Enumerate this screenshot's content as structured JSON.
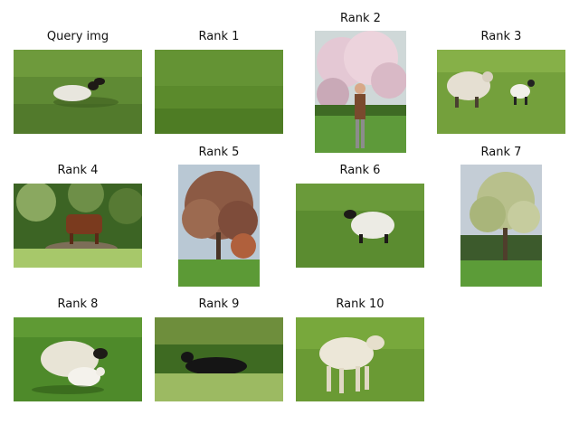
{
  "panels": [
    {
      "id": "query",
      "title": "Query img",
      "scene": "sheep lying on grass"
    },
    {
      "id": "rank1",
      "title": "Rank 1",
      "scene": "grass field"
    },
    {
      "id": "rank2",
      "title": "Rank 2",
      "scene": "person by blossoming tree"
    },
    {
      "id": "rank3",
      "title": "Rank 3",
      "scene": "sheep and lamb on grass"
    },
    {
      "id": "rank4",
      "title": "Rank 4",
      "scene": "brown cow among bushes"
    },
    {
      "id": "rank5",
      "title": "Rank 5",
      "scene": "autumn tree in park"
    },
    {
      "id": "rank6",
      "title": "Rank 6",
      "scene": "sheep walking on grass"
    },
    {
      "id": "rank7",
      "title": "Rank 7",
      "scene": "tree in spring"
    },
    {
      "id": "rank8",
      "title": "Rank 8",
      "scene": "ewe with lamb"
    },
    {
      "id": "rank9",
      "title": "Rank 9",
      "scene": "black cow lying in grass"
    },
    {
      "id": "rank10",
      "title": "Rank 10",
      "scene": "lamb standing on grass"
    }
  ]
}
